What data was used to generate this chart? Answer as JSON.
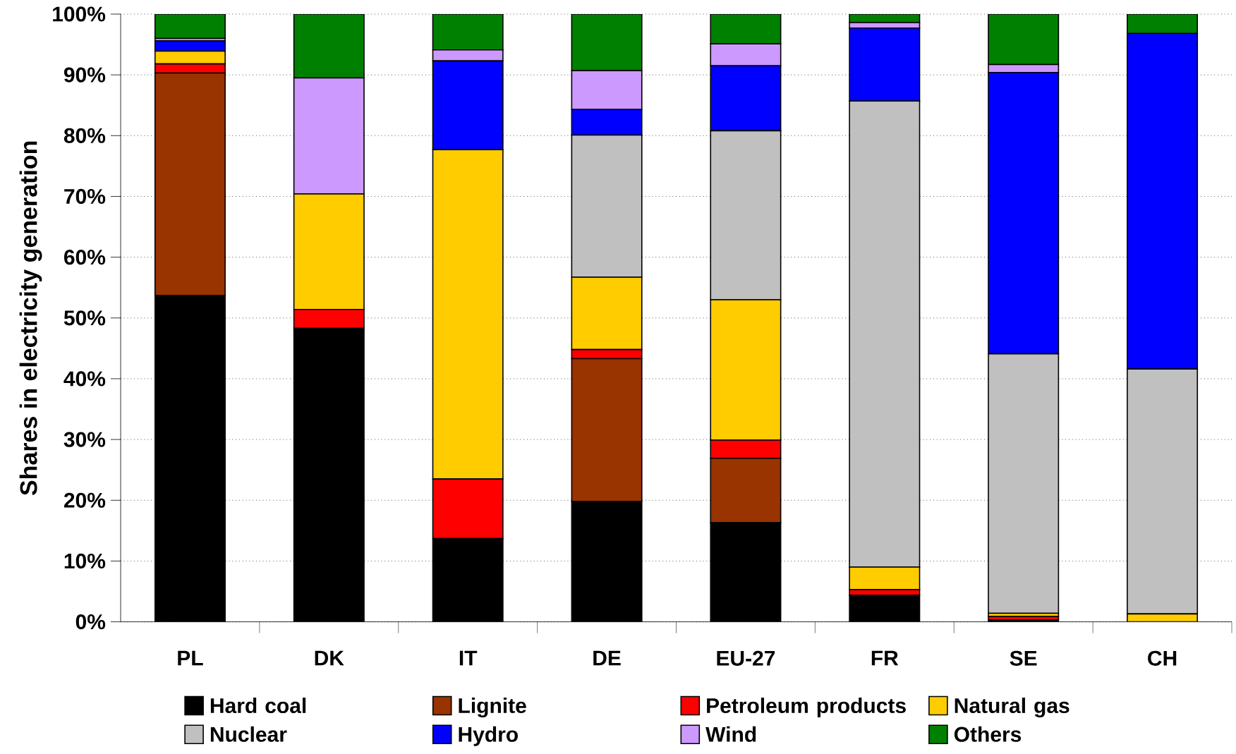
{
  "chart_data": {
    "type": "bar",
    "stacked": true,
    "ylabel": "Shares in electricity generation",
    "categories": [
      "PL",
      "DK",
      "IT",
      "DE",
      "EU-27",
      "FR",
      "SE",
      "CH"
    ],
    "series": [
      {
        "name": "Hard coal",
        "color": "#000000",
        "values": [
          53.7,
          48.3,
          13.7,
          19.8,
          16.3,
          4.4,
          0.3,
          0
        ]
      },
      {
        "name": "Lignite",
        "color": "#993300",
        "values": [
          36.6,
          0,
          0,
          23.5,
          10.6,
          0,
          0,
          0
        ]
      },
      {
        "name": "Petroleum products",
        "color": "#ff0000",
        "values": [
          1.5,
          3.1,
          9.8,
          1.5,
          3.0,
          0.9,
          0.6,
          0
        ]
      },
      {
        "name": "Natural gas",
        "color": "#ffcc00",
        "values": [
          2.1,
          19.0,
          54.2,
          11.9,
          23.1,
          3.7,
          0.5,
          1.3
        ]
      },
      {
        "name": "Nuclear",
        "color": "#c0c0c0",
        "values": [
          0,
          0,
          0,
          23.4,
          27.8,
          76.7,
          42.7,
          40.3
        ]
      },
      {
        "name": "Hydro",
        "color": "#0000ff",
        "values": [
          1.7,
          0,
          14.6,
          4.2,
          10.7,
          12.0,
          46.3,
          55.2
        ]
      },
      {
        "name": "Wind",
        "color": "#cc99ff",
        "values": [
          0.4,
          19.1,
          1.8,
          6.4,
          3.6,
          0.9,
          1.3,
          0
        ]
      },
      {
        "name": "Others",
        "color": "#008000",
        "values": [
          4.0,
          10.5,
          5.9,
          9.3,
          4.9,
          1.4,
          8.3,
          3.2
        ]
      }
    ],
    "ylim": [
      0,
      100
    ],
    "yticks": [
      {
        "value": 0,
        "label": "0%"
      },
      {
        "value": 10,
        "label": "10%"
      },
      {
        "value": 20,
        "label": "20%"
      },
      {
        "value": 30,
        "label": "30%"
      },
      {
        "value": 40,
        "label": "40%"
      },
      {
        "value": 50,
        "label": "50%"
      },
      {
        "value": 60,
        "label": "60%"
      },
      {
        "value": 70,
        "label": "70%"
      },
      {
        "value": 80,
        "label": "80%"
      },
      {
        "value": 90,
        "label": "90%"
      },
      {
        "value": 100,
        "label": "100%"
      }
    ],
    "grid": "y",
    "legend": "bottom"
  }
}
